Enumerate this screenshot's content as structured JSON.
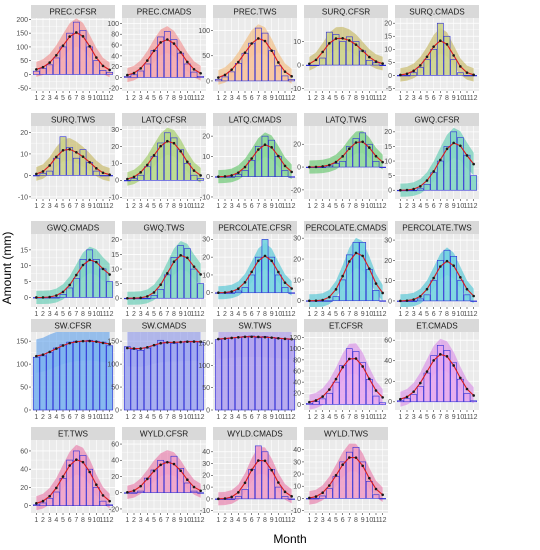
{
  "figure": {
    "xlabel": "Month",
    "ylabel": "Amount  (mm)",
    "x_ticks": [
      "1",
      "2",
      "3",
      "4",
      "5",
      "6",
      "7",
      "8",
      "9",
      "10",
      "11",
      "12"
    ],
    "colors": {
      "strip_bg": "#d9d9d9",
      "panel_bg": "#ebebeb",
      "grid": "#ffffff",
      "bar_outline": "#2b2bd6",
      "point": "#1a1a1a",
      "fit_line": "#d7191c"
    }
  },
  "chart_data": [
    {
      "type": "bar",
      "title": "PREC.CFSR",
      "ylim": [
        -60,
        205
      ],
      "y_ticks": [
        -50,
        0,
        50,
        100,
        150,
        200
      ],
      "categories": [
        1,
        2,
        3,
        4,
        5,
        6,
        7,
        8,
        9,
        10,
        11,
        12
      ],
      "values": [
        12,
        22,
        35,
        60,
        100,
        150,
        190,
        160,
        100,
        50,
        15,
        8
      ],
      "bar_color": "#f4a6ad",
      "band_color": "#f08080"
    },
    {
      "type": "bar",
      "title": "PREC.CMADS",
      "ylim": [
        -25,
        110
      ],
      "y_ticks": [
        -20,
        0,
        20,
        40,
        60,
        80,
        100
      ],
      "categories": [
        1,
        2,
        3,
        4,
        5,
        6,
        7,
        8,
        9,
        10,
        11,
        12
      ],
      "values": [
        2,
        5,
        12,
        25,
        50,
        75,
        85,
        70,
        45,
        25,
        10,
        2
      ],
      "bar_color": "#f4a6ad",
      "band_color": "#f08080"
    },
    {
      "type": "bar",
      "title": "PREC.TWS",
      "ylim": [
        -20,
        125
      ],
      "y_ticks": [
        0,
        50,
        100
      ],
      "categories": [
        1,
        2,
        3,
        4,
        5,
        6,
        7,
        8,
        9,
        10,
        11,
        12
      ],
      "values": [
        3,
        8,
        18,
        35,
        55,
        75,
        105,
        95,
        60,
        30,
        10,
        3
      ],
      "bar_color": "#f7c39b",
      "band_color": "#f3b36a"
    },
    {
      "type": "bar",
      "title": "SURQ.CFSR",
      "ylim": [
        -11,
        20
      ],
      "y_ticks": [
        -10,
        0,
        10
      ],
      "categories": [
        1,
        2,
        3,
        4,
        5,
        6,
        7,
        8,
        9,
        10,
        11,
        12
      ],
      "values": [
        0,
        0,
        3,
        14,
        13,
        10,
        12,
        10,
        6,
        2,
        1,
        0
      ],
      "bar_color": "#ccd38a",
      "band_color": "#bfae4a"
    },
    {
      "type": "bar",
      "title": "SURQ.CMADS",
      "ylim": [
        -6,
        22
      ],
      "y_ticks": [
        -5,
        0,
        5,
        10,
        15,
        20
      ],
      "categories": [
        1,
        2,
        3,
        4,
        5,
        6,
        7,
        8,
        9,
        10,
        11,
        12
      ],
      "values": [
        0,
        0,
        1,
        3,
        6,
        10,
        20,
        15,
        6,
        1,
        0,
        0
      ],
      "bar_color": "#ccd38a",
      "band_color": "#bfae4a"
    },
    {
      "type": "bar",
      "title": "SURQ.TWS",
      "ylim": [
        -11,
        23
      ],
      "y_ticks": [
        -10,
        0,
        10,
        20
      ],
      "categories": [
        1,
        2,
        3,
        4,
        5,
        6,
        7,
        8,
        9,
        10,
        11,
        12
      ],
      "values": [
        0,
        1,
        2,
        8,
        18,
        13,
        8,
        12,
        6,
        2,
        0,
        0
      ],
      "bar_color": "#ccd38a",
      "band_color": "#bfae4a"
    },
    {
      "type": "bar",
      "title": "LATQ.CFSR",
      "ylim": [
        -11,
        32
      ],
      "y_ticks": [
        -10,
        0,
        10,
        20,
        30
      ],
      "categories": [
        1,
        2,
        3,
        4,
        5,
        6,
        7,
        8,
        9,
        10,
        11,
        12
      ],
      "values": [
        0,
        1,
        3,
        8,
        14,
        22,
        28,
        25,
        18,
        10,
        3,
        1
      ],
      "bar_color": "#b7d88a",
      "band_color": "#8fc548"
    },
    {
      "type": "bar",
      "title": "LATQ.CMADS",
      "ylim": [
        -11,
        25
      ],
      "y_ticks": [
        -10,
        0,
        10,
        20
      ],
      "categories": [
        1,
        2,
        3,
        4,
        5,
        6,
        7,
        8,
        9,
        10,
        11,
        12
      ],
      "values": [
        0,
        0,
        0,
        1,
        3,
        8,
        15,
        20,
        18,
        10,
        3,
        0
      ],
      "bar_color": "#8ed99a",
      "band_color": "#4cbf55"
    },
    {
      "type": "bar",
      "title": "LATQ.TWS",
      "ylim": [
        -28,
        36
      ],
      "y_ticks": [
        -20,
        0,
        20
      ],
      "categories": [
        1,
        2,
        3,
        4,
        5,
        6,
        7,
        8,
        9,
        10,
        11,
        12
      ],
      "values": [
        0,
        0,
        0,
        1,
        3,
        5,
        18,
        25,
        30,
        20,
        5,
        0
      ],
      "bar_color": "#8ed99a",
      "band_color": "#4cbf55"
    },
    {
      "type": "bar",
      "title": "GWQ.CFSR",
      "ylim": [
        -3,
        22
      ],
      "y_ticks": [
        0,
        5,
        10,
        15,
        20
      ],
      "categories": [
        1,
        2,
        3,
        4,
        5,
        6,
        7,
        8,
        9,
        10,
        11,
        12
      ],
      "values": [
        0,
        0,
        0,
        0.5,
        2,
        6,
        10,
        15,
        20,
        18,
        12,
        5
      ],
      "bar_color": "#83d6c3",
      "band_color": "#48c6aa"
    },
    {
      "type": "bar",
      "title": "GWQ.CMADS",
      "ylim": [
        -3,
        20
      ],
      "y_ticks": [
        0,
        5,
        10,
        15
      ],
      "categories": [
        1,
        2,
        3,
        4,
        5,
        6,
        7,
        8,
        9,
        10,
        11,
        12
      ],
      "values": [
        0,
        0,
        0,
        0,
        1,
        3,
        6,
        12,
        15,
        12,
        9,
        5
      ],
      "bar_color": "#83d6c3",
      "band_color": "#48c6aa"
    },
    {
      "type": "bar",
      "title": "GWQ.TWS",
      "ylim": [
        -3,
        22
      ],
      "y_ticks": [
        0,
        5,
        10,
        15,
        20
      ],
      "categories": [
        1,
        2,
        3,
        4,
        5,
        6,
        7,
        8,
        9,
        10,
        11,
        12
      ],
      "values": [
        0,
        0,
        0,
        0,
        1,
        3,
        8,
        14,
        18,
        17,
        10,
        5
      ],
      "bar_color": "#83d6c3",
      "band_color": "#48c6aa"
    },
    {
      "type": "bar",
      "title": "PERCOLATE.CFSR",
      "ylim": [
        -8,
        33
      ],
      "y_ticks": [
        0,
        10,
        20,
        30
      ],
      "categories": [
        1,
        2,
        3,
        4,
        5,
        6,
        7,
        8,
        9,
        10,
        11,
        12
      ],
      "values": [
        0,
        0,
        0,
        1,
        3,
        10,
        20,
        30,
        20,
        10,
        3,
        0
      ],
      "bar_color": "#74d4e0",
      "band_color": "#34bfd1"
    },
    {
      "type": "bar",
      "title": "PERCOLATE.CMADS",
      "ylim": [
        -3,
        32
      ],
      "y_ticks": [
        0,
        10,
        20,
        30
      ],
      "categories": [
        1,
        2,
        3,
        4,
        5,
        6,
        7,
        8,
        9,
        10,
        11,
        12
      ],
      "values": [
        0,
        0,
        0,
        0,
        2,
        10,
        22,
        28,
        28,
        15,
        5,
        0
      ],
      "bar_color": "#74d4e0",
      "band_color": "#34bfd1"
    },
    {
      "type": "bar",
      "title": "PERCOLATE.TWS",
      "ylim": [
        -3,
        33
      ],
      "y_ticks": [
        0,
        10,
        20,
        30
      ],
      "categories": [
        1,
        2,
        3,
        4,
        5,
        6,
        7,
        8,
        9,
        10,
        11,
        12
      ],
      "values": [
        0,
        0,
        0,
        1,
        3,
        10,
        20,
        25,
        22,
        10,
        3,
        0
      ],
      "bar_color": "#74d4e0",
      "band_color": "#34bfd1"
    },
    {
      "type": "bar",
      "title": "SW.CFSR",
      "ylim": [
        0,
        170
      ],
      "y_ticks": [
        0,
        50,
        100,
        150
      ],
      "categories": [
        1,
        2,
        3,
        4,
        5,
        6,
        7,
        8,
        9,
        10,
        11,
        12
      ],
      "values": [
        115,
        118,
        125,
        135,
        142,
        148,
        150,
        150,
        152,
        150,
        148,
        140
      ],
      "bar_color": "#7bb2f0",
      "band_color": "#4f97ea"
    },
    {
      "type": "bar",
      "title": "SW.CMADS",
      "ylim": [
        0,
        170
      ],
      "y_ticks": [
        0,
        50,
        100,
        150
      ],
      "categories": [
        1,
        2,
        3,
        4,
        5,
        6,
        7,
        8,
        9,
        10,
        11,
        12
      ],
      "values": [
        138,
        132,
        130,
        135,
        140,
        152,
        148,
        145,
        148,
        150,
        150,
        148
      ],
      "bar_color": "#a0a7ef",
      "band_color": "#7f8ae7"
    },
    {
      "type": "bar",
      "title": "SW.TWS",
      "ylim": [
        0,
        175
      ],
      "y_ticks": [
        0,
        50,
        100,
        150
      ],
      "categories": [
        1,
        2,
        3,
        4,
        5,
        6,
        7,
        8,
        9,
        10,
        11,
        12
      ],
      "values": [
        158,
        160,
        162,
        163,
        165,
        166,
        162,
        165,
        163,
        160,
        160,
        158
      ],
      "bar_color": "#b3a4ee",
      "band_color": "#9a86e6"
    },
    {
      "type": "bar",
      "title": "ET.CFSR",
      "ylim": [
        -10,
        130
      ],
      "y_ticks": [
        0,
        20,
        40,
        60,
        80,
        100,
        120
      ],
      "categories": [
        1,
        2,
        3,
        4,
        5,
        6,
        7,
        8,
        9,
        10,
        11,
        12
      ],
      "values": [
        2,
        5,
        10,
        20,
        40,
        70,
        100,
        95,
        75,
        45,
        15,
        3
      ],
      "bar_color": "#e5a6ee",
      "band_color": "#d680e6"
    },
    {
      "type": "bar",
      "title": "ET.CMADS",
      "ylim": [
        -8,
        68
      ],
      "y_ticks": [
        0,
        20,
        40,
        60
      ],
      "categories": [
        1,
        2,
        3,
        4,
        5,
        6,
        7,
        8,
        9,
        10,
        11,
        12
      ],
      "values": [
        1,
        3,
        7,
        15,
        28,
        45,
        55,
        50,
        38,
        22,
        8,
        1
      ],
      "bar_color": "#e5a6ee",
      "band_color": "#d680e6"
    },
    {
      "type": "bar",
      "title": "ET.TWS",
      "ylim": [
        -8,
        72
      ],
      "y_ticks": [
        0,
        20,
        40,
        60
      ],
      "categories": [
        1,
        2,
        3,
        4,
        5,
        6,
        7,
        8,
        9,
        10,
        11,
        12
      ],
      "values": [
        1,
        3,
        8,
        15,
        30,
        50,
        60,
        55,
        40,
        20,
        5,
        1
      ],
      "bar_color": "#f0a0c8",
      "band_color": "#e8689e"
    },
    {
      "type": "bar",
      "title": "WYLD.CFSR",
      "ylim": [
        -25,
        65
      ],
      "y_ticks": [
        -20,
        0,
        20,
        40,
        60
      ],
      "categories": [
        1,
        2,
        3,
        4,
        5,
        6,
        7,
        8,
        9,
        10,
        11,
        12
      ],
      "values": [
        0,
        0,
        2,
        18,
        28,
        40,
        38,
        45,
        30,
        12,
        2,
        0
      ],
      "bar_color": "#f0a0c8",
      "band_color": "#e8689e"
    },
    {
      "type": "bar",
      "title": "WYLD.CMADS",
      "ylim": [
        -12,
        50
      ],
      "y_ticks": [
        -10,
        0,
        10,
        20,
        30,
        40
      ],
      "categories": [
        1,
        2,
        3,
        4,
        5,
        6,
        7,
        8,
        9,
        10,
        11,
        12
      ],
      "values": [
        0,
        0,
        0,
        2,
        8,
        25,
        45,
        40,
        25,
        10,
        2,
        0
      ],
      "bar_color": "#f0a0c8",
      "band_color": "#e8689e"
    },
    {
      "type": "bar",
      "title": "WYLD.TWS",
      "ylim": [
        -12,
        48
      ],
      "y_ticks": [
        -10,
        0,
        10,
        20,
        30,
        40
      ],
      "categories": [
        1,
        2,
        3,
        4,
        5,
        6,
        7,
        8,
        9,
        10,
        11,
        12
      ],
      "values": [
        0,
        0,
        2,
        8,
        18,
        30,
        38,
        42,
        30,
        14,
        3,
        0
      ],
      "bar_color": "#f0a0c8",
      "band_color": "#e8689e"
    }
  ]
}
